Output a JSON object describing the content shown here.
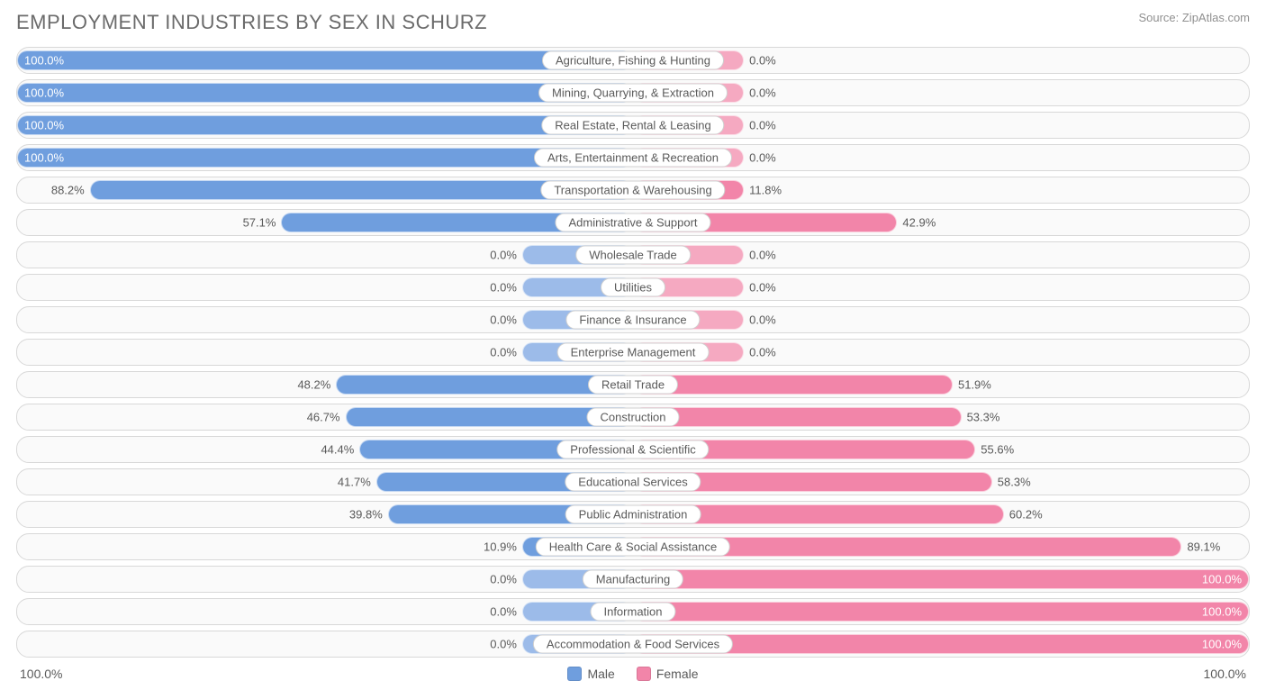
{
  "title": "EMPLOYMENT INDUSTRIES BY SEX IN SCHURZ",
  "source": "Source: ZipAtlas.com",
  "colors": {
    "male_fill": "#6f9ede",
    "male_fill_faded": "#9cbbe9",
    "female_fill": "#f285a9",
    "female_fill_faded": "#f5a9c1",
    "row_border": "#d8d8d8",
    "row_bg": "#fafafa",
    "text": "#5a5a5a",
    "title_text": "#6b6b6b",
    "source_text": "#909090",
    "background": "#ffffff"
  },
  "chart": {
    "type": "diverging-bar",
    "axis_min": 0,
    "axis_max": 100,
    "min_bar_pct": 18,
    "left_axis_label": "100.0%",
    "right_axis_label": "100.0%",
    "legend": [
      {
        "label": "Male",
        "color": "#6f9ede"
      },
      {
        "label": "Female",
        "color": "#f285a9"
      }
    ],
    "rows": [
      {
        "category": "Agriculture, Fishing & Hunting",
        "male": 100.0,
        "female": 0.0
      },
      {
        "category": "Mining, Quarrying, & Extraction",
        "male": 100.0,
        "female": 0.0
      },
      {
        "category": "Real Estate, Rental & Leasing",
        "male": 100.0,
        "female": 0.0
      },
      {
        "category": "Arts, Entertainment & Recreation",
        "male": 100.0,
        "female": 0.0
      },
      {
        "category": "Transportation & Warehousing",
        "male": 88.2,
        "female": 11.8
      },
      {
        "category": "Administrative & Support",
        "male": 57.1,
        "female": 42.9
      },
      {
        "category": "Wholesale Trade",
        "male": 0.0,
        "female": 0.0
      },
      {
        "category": "Utilities",
        "male": 0.0,
        "female": 0.0
      },
      {
        "category": "Finance & Insurance",
        "male": 0.0,
        "female": 0.0
      },
      {
        "category": "Enterprise Management",
        "male": 0.0,
        "female": 0.0
      },
      {
        "category": "Retail Trade",
        "male": 48.2,
        "female": 51.9
      },
      {
        "category": "Construction",
        "male": 46.7,
        "female": 53.3
      },
      {
        "category": "Professional & Scientific",
        "male": 44.4,
        "female": 55.6
      },
      {
        "category": "Educational Services",
        "male": 41.7,
        "female": 58.3
      },
      {
        "category": "Public Administration",
        "male": 39.8,
        "female": 60.2
      },
      {
        "category": "Health Care & Social Assistance",
        "male": 10.9,
        "female": 89.1
      },
      {
        "category": "Manufacturing",
        "male": 0.0,
        "female": 100.0
      },
      {
        "category": "Information",
        "male": 0.0,
        "female": 100.0
      },
      {
        "category": "Accommodation & Food Services",
        "male": 0.0,
        "female": 100.0
      }
    ]
  }
}
